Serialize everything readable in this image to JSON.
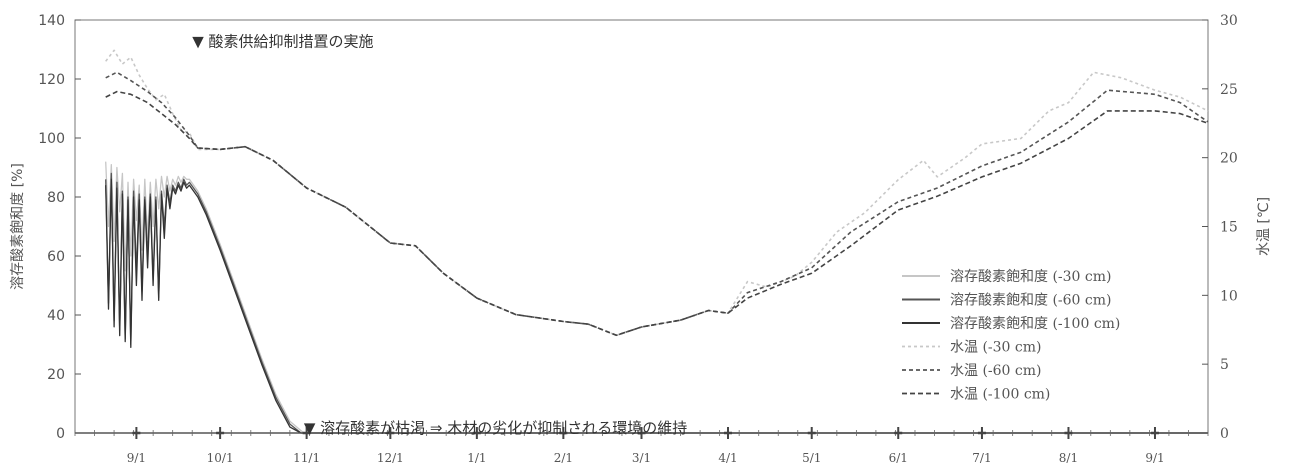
{
  "chart_data": {
    "type": "line",
    "title": "",
    "xlabel": "",
    "ylabel": "溶存酸素飽和度 [%]",
    "y2label": "水温 [℃]",
    "ylim": [
      0,
      140
    ],
    "y2lim": [
      0,
      30
    ],
    "yticks": [
      "0",
      "20",
      "40",
      "60",
      "80",
      "100",
      "120",
      "140"
    ],
    "y2ticks": [
      "0",
      "5",
      "10",
      "15",
      "20",
      "25",
      "30"
    ],
    "xlim": [
      "2016-08-10",
      "2017-09-20"
    ],
    "xticks": [
      {
        "date": "2016-09-01",
        "label": "9/1"
      },
      {
        "date": "2016-10-01",
        "label": "10/1"
      },
      {
        "date": "2016-11-01",
        "label": "11/1"
      },
      {
        "date": "2016-12-01",
        "label": "12/1"
      },
      {
        "date": "2017-01-01",
        "label": "1/1"
      },
      {
        "date": "2017-02-01",
        "label": "2/1"
      },
      {
        "date": "2017-03-01",
        "label": "3/1"
      },
      {
        "date": "2017-04-01",
        "label": "4/1"
      },
      {
        "date": "2017-05-01",
        "label": "5/1"
      },
      {
        "date": "2017-06-01",
        "label": "6/1"
      },
      {
        "date": "2017-07-01",
        "label": "7/1"
      },
      {
        "date": "2017-08-01",
        "label": "8/1"
      },
      {
        "date": "2017-09-01",
        "label": "9/1"
      }
    ],
    "legend_position": "bottom-right",
    "grid": false,
    "annotations": [
      {
        "text": "▼ 酸素供給抑制措置の実施",
        "date": "2016-09-21",
        "y": 133
      },
      {
        "text": "▼ 溶存酸素が枯渇 ⇒ 木材の劣化が抑制される環境の維持",
        "date": "2016-10-31",
        "y": 2
      }
    ],
    "series": [
      {
        "name": "溶存酸素飽和度 (-30 cm)",
        "axis": "left",
        "color": "#c6c6c6",
        "dash": "",
        "points": [
          [
            "2016-08-21",
            92
          ],
          [
            "2016-08-22",
            70
          ],
          [
            "2016-08-23",
            91
          ],
          [
            "2016-08-24",
            65
          ],
          [
            "2016-08-25",
            90
          ],
          [
            "2016-08-26",
            75
          ],
          [
            "2016-08-27",
            88
          ],
          [
            "2016-08-28",
            55
          ],
          [
            "2016-08-29",
            85
          ],
          [
            "2016-08-30",
            60
          ],
          [
            "2016-08-31",
            86
          ],
          [
            "2016-09-01",
            72
          ],
          [
            "2016-09-02",
            84
          ],
          [
            "2016-09-03",
            62
          ],
          [
            "2016-09-04",
            86
          ],
          [
            "2016-09-05",
            66
          ],
          [
            "2016-09-06",
            85
          ],
          [
            "2016-09-07",
            70
          ],
          [
            "2016-09-08",
            86
          ],
          [
            "2016-09-09",
            76
          ],
          [
            "2016-09-10",
            87
          ],
          [
            "2016-09-11",
            80
          ],
          [
            "2016-09-12",
            87
          ],
          [
            "2016-09-13",
            82
          ],
          [
            "2016-09-14",
            86
          ],
          [
            "2016-09-15",
            84
          ],
          [
            "2016-09-16",
            87
          ],
          [
            "2016-09-17",
            85
          ],
          [
            "2016-09-18",
            87
          ],
          [
            "2016-09-19",
            86
          ],
          [
            "2016-09-20",
            86
          ],
          [
            "2016-09-23",
            82
          ],
          [
            "2016-09-26",
            76
          ],
          [
            "2016-10-01",
            64
          ],
          [
            "2016-10-06",
            51
          ],
          [
            "2016-10-11",
            38
          ],
          [
            "2016-10-16",
            25
          ],
          [
            "2016-10-21",
            13
          ],
          [
            "2016-10-26",
            4
          ],
          [
            "2016-10-31",
            0
          ],
          [
            "2017-09-20",
            0
          ]
        ]
      },
      {
        "name": "溶存酸素飽和度 (-60 cm)",
        "axis": "left",
        "color": "#555555",
        "dash": "",
        "points": [
          [
            "2016-08-21",
            86
          ],
          [
            "2016-08-22",
            44
          ],
          [
            "2016-08-23",
            88
          ],
          [
            "2016-08-24",
            38
          ],
          [
            "2016-08-25",
            85
          ],
          [
            "2016-08-26",
            35
          ],
          [
            "2016-08-27",
            82
          ],
          [
            "2016-08-28",
            32
          ],
          [
            "2016-08-29",
            80
          ],
          [
            "2016-08-30",
            30
          ],
          [
            "2016-08-31",
            82
          ],
          [
            "2016-09-01",
            55
          ],
          [
            "2016-09-02",
            81
          ],
          [
            "2016-09-03",
            48
          ],
          [
            "2016-09-04",
            80
          ],
          [
            "2016-09-05",
            60
          ],
          [
            "2016-09-06",
            81
          ],
          [
            "2016-09-07",
            52
          ],
          [
            "2016-09-08",
            80
          ],
          [
            "2016-09-09",
            46
          ],
          [
            "2016-09-10",
            82
          ],
          [
            "2016-09-11",
            70
          ],
          [
            "2016-09-12",
            84
          ],
          [
            "2016-09-13",
            78
          ],
          [
            "2016-09-14",
            84
          ],
          [
            "2016-09-15",
            82
          ],
          [
            "2016-09-16",
            85
          ],
          [
            "2016-09-17",
            83
          ],
          [
            "2016-09-18",
            86
          ],
          [
            "2016-09-19",
            84
          ],
          [
            "2016-09-20",
            85
          ],
          [
            "2016-09-23",
            81
          ],
          [
            "2016-09-26",
            75
          ],
          [
            "2016-10-01",
            63
          ],
          [
            "2016-10-06",
            50
          ],
          [
            "2016-10-11",
            37
          ],
          [
            "2016-10-16",
            24
          ],
          [
            "2016-10-21",
            12
          ],
          [
            "2016-10-26",
            3
          ],
          [
            "2016-10-30",
            0
          ],
          [
            "2017-09-20",
            0
          ]
        ]
      },
      {
        "name": "溶存酸素飽和度 (-100 cm)",
        "axis": "left",
        "color": "#333333",
        "dash": "",
        "points": [
          [
            "2016-08-21",
            84
          ],
          [
            "2016-08-22",
            42
          ],
          [
            "2016-08-23",
            86
          ],
          [
            "2016-08-24",
            36
          ],
          [
            "2016-08-25",
            83
          ],
          [
            "2016-08-26",
            33
          ],
          [
            "2016-08-27",
            81
          ],
          [
            "2016-08-28",
            31
          ],
          [
            "2016-08-29",
            79
          ],
          [
            "2016-08-30",
            29
          ],
          [
            "2016-08-31",
            80
          ],
          [
            "2016-09-01",
            50
          ],
          [
            "2016-09-02",
            79
          ],
          [
            "2016-09-03",
            45
          ],
          [
            "2016-09-04",
            79
          ],
          [
            "2016-09-05",
            56
          ],
          [
            "2016-09-06",
            80
          ],
          [
            "2016-09-07",
            50
          ],
          [
            "2016-09-08",
            79
          ],
          [
            "2016-09-09",
            45
          ],
          [
            "2016-09-10",
            81
          ],
          [
            "2016-09-11",
            66
          ],
          [
            "2016-09-12",
            83
          ],
          [
            "2016-09-13",
            76
          ],
          [
            "2016-09-14",
            83
          ],
          [
            "2016-09-15",
            81
          ],
          [
            "2016-09-16",
            84
          ],
          [
            "2016-09-17",
            82
          ],
          [
            "2016-09-18",
            85
          ],
          [
            "2016-09-19",
            83
          ],
          [
            "2016-09-20",
            84
          ],
          [
            "2016-09-23",
            80
          ],
          [
            "2016-09-26",
            74
          ],
          [
            "2016-10-01",
            62
          ],
          [
            "2016-10-06",
            49
          ],
          [
            "2016-10-11",
            36
          ],
          [
            "2016-10-16",
            23
          ],
          [
            "2016-10-21",
            11
          ],
          [
            "2016-10-26",
            2
          ],
          [
            "2016-10-30",
            0
          ],
          [
            "2017-09-20",
            0
          ]
        ]
      },
      {
        "name": "水温 (-30 cm)",
        "axis": "right",
        "color": "#c8c8c8",
        "dash": "3,3",
        "points": [
          [
            "2016-08-21",
            27.0
          ],
          [
            "2016-08-24",
            27.8
          ],
          [
            "2016-08-27",
            26.8
          ],
          [
            "2016-08-30",
            27.3
          ],
          [
            "2016-09-02",
            26.0
          ],
          [
            "2016-09-05",
            25.0
          ],
          [
            "2016-09-08",
            24.2
          ],
          [
            "2016-09-11",
            24.6
          ],
          [
            "2016-09-14",
            23.2
          ],
          [
            "2016-09-17",
            22.0
          ],
          [
            "2016-09-20",
            21.8
          ],
          [
            "2016-09-23",
            20.6
          ],
          [
            "2016-10-01",
            20.6
          ],
          [
            "2016-10-10",
            20.8
          ],
          [
            "2016-10-20",
            19.8
          ],
          [
            "2016-11-01",
            17.8
          ],
          [
            "2016-11-15",
            16.4
          ],
          [
            "2016-12-01",
            13.8
          ],
          [
            "2016-12-10",
            13.6
          ],
          [
            "2016-12-20",
            11.6
          ],
          [
            "2017-01-01",
            9.8
          ],
          [
            "2017-01-15",
            8.6
          ],
          [
            "2017-02-01",
            8.1
          ],
          [
            "2017-02-10",
            7.9
          ],
          [
            "2017-02-20",
            7.1
          ],
          [
            "2017-03-01",
            7.7
          ],
          [
            "2017-03-15",
            8.2
          ],
          [
            "2017-03-25",
            8.9
          ],
          [
            "2017-04-01",
            8.7
          ],
          [
            "2017-04-08",
            11.0
          ],
          [
            "2017-04-15",
            10.6
          ],
          [
            "2017-04-25",
            11.4
          ],
          [
            "2017-05-01",
            12.4
          ],
          [
            "2017-05-10",
            14.6
          ],
          [
            "2017-05-20",
            16.0
          ],
          [
            "2017-06-01",
            18.4
          ],
          [
            "2017-06-10",
            19.8
          ],
          [
            "2017-06-15",
            18.6
          ],
          [
            "2017-06-25",
            20.0
          ],
          [
            "2017-07-01",
            21.0
          ],
          [
            "2017-07-15",
            21.4
          ],
          [
            "2017-07-25",
            23.4
          ],
          [
            "2017-08-01",
            24.0
          ],
          [
            "2017-08-10",
            26.2
          ],
          [
            "2017-08-20",
            25.8
          ],
          [
            "2017-09-01",
            24.9
          ],
          [
            "2017-09-10",
            24.4
          ],
          [
            "2017-09-20",
            23.4
          ]
        ]
      },
      {
        "name": "水温 (-60 cm)",
        "axis": "right",
        "color": "#555555",
        "dash": "4,3",
        "points": [
          [
            "2016-08-21",
            25.8
          ],
          [
            "2016-08-25",
            26.2
          ],
          [
            "2016-08-30",
            25.6
          ],
          [
            "2016-09-05",
            24.8
          ],
          [
            "2016-09-10",
            24.0
          ],
          [
            "2016-09-15",
            22.9
          ],
          [
            "2016-09-20",
            21.6
          ],
          [
            "2016-09-23",
            20.7
          ],
          [
            "2016-10-01",
            20.6
          ],
          [
            "2016-10-10",
            20.8
          ],
          [
            "2016-10-20",
            19.8
          ],
          [
            "2016-11-01",
            17.8
          ],
          [
            "2016-11-15",
            16.4
          ],
          [
            "2016-12-01",
            13.8
          ],
          [
            "2016-12-10",
            13.6
          ],
          [
            "2016-12-20",
            11.6
          ],
          [
            "2017-01-01",
            9.8
          ],
          [
            "2017-01-15",
            8.6
          ],
          [
            "2017-02-01",
            8.1
          ],
          [
            "2017-02-10",
            7.9
          ],
          [
            "2017-02-20",
            7.1
          ],
          [
            "2017-03-01",
            7.7
          ],
          [
            "2017-03-15",
            8.2
          ],
          [
            "2017-03-25",
            8.9
          ],
          [
            "2017-04-01",
            8.7
          ],
          [
            "2017-04-08",
            10.2
          ],
          [
            "2017-04-20",
            11.0
          ],
          [
            "2017-05-01",
            12.0
          ],
          [
            "2017-05-15",
            14.6
          ],
          [
            "2017-06-01",
            16.8
          ],
          [
            "2017-06-15",
            17.8
          ],
          [
            "2017-07-01",
            19.4
          ],
          [
            "2017-07-15",
            20.4
          ],
          [
            "2017-08-01",
            22.6
          ],
          [
            "2017-08-15",
            24.9
          ],
          [
            "2017-09-01",
            24.6
          ],
          [
            "2017-09-10",
            24.0
          ],
          [
            "2017-09-20",
            22.6
          ]
        ]
      },
      {
        "name": "水温 (-100 cm)",
        "axis": "right",
        "color": "#444444",
        "dash": "5,3",
        "points": [
          [
            "2016-08-21",
            24.4
          ],
          [
            "2016-08-25",
            24.8
          ],
          [
            "2016-08-30",
            24.6
          ],
          [
            "2016-09-05",
            24.0
          ],
          [
            "2016-09-10",
            23.2
          ],
          [
            "2016-09-15",
            22.4
          ],
          [
            "2016-09-20",
            21.4
          ],
          [
            "2016-09-23",
            20.7
          ],
          [
            "2016-10-01",
            20.6
          ],
          [
            "2016-10-10",
            20.8
          ],
          [
            "2016-10-20",
            19.8
          ],
          [
            "2016-11-01",
            17.8
          ],
          [
            "2016-11-15",
            16.4
          ],
          [
            "2016-12-01",
            13.8
          ],
          [
            "2016-12-10",
            13.6
          ],
          [
            "2016-12-20",
            11.6
          ],
          [
            "2017-01-01",
            9.8
          ],
          [
            "2017-01-15",
            8.6
          ],
          [
            "2017-02-01",
            8.1
          ],
          [
            "2017-02-10",
            7.9
          ],
          [
            "2017-02-20",
            7.1
          ],
          [
            "2017-03-01",
            7.7
          ],
          [
            "2017-03-15",
            8.2
          ],
          [
            "2017-03-25",
            8.9
          ],
          [
            "2017-04-01",
            8.7
          ],
          [
            "2017-04-08",
            9.8
          ],
          [
            "2017-04-20",
            10.8
          ],
          [
            "2017-05-01",
            11.6
          ],
          [
            "2017-05-15",
            13.6
          ],
          [
            "2017-06-01",
            16.2
          ],
          [
            "2017-06-15",
            17.2
          ],
          [
            "2017-07-01",
            18.6
          ],
          [
            "2017-07-15",
            19.6
          ],
          [
            "2017-08-01",
            21.4
          ],
          [
            "2017-08-15",
            23.4
          ],
          [
            "2017-09-01",
            23.4
          ],
          [
            "2017-09-10",
            23.2
          ],
          [
            "2017-09-20",
            22.5
          ]
        ]
      }
    ]
  }
}
